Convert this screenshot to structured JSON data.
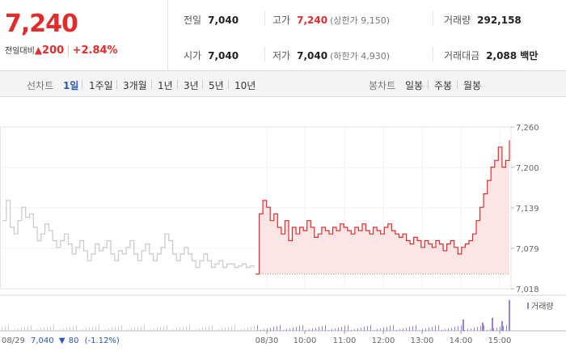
{
  "summary": {
    "price": "7,240",
    "change_label": "전일대비",
    "change_arrow": "▲",
    "change_value": "200",
    "change_rate": "+2.84%",
    "prev_close": {
      "label": "전일",
      "value": "7,040"
    },
    "open": {
      "label": "시가",
      "value": "7,040"
    },
    "high": {
      "label": "고가",
      "value": "7,240",
      "sub": "(상한가 9,150)"
    },
    "low": {
      "label": "저가",
      "value": "7,040",
      "sub": "(하한가 4,930)"
    },
    "volume": {
      "label": "거래량",
      "value": "292,158"
    },
    "turnover": {
      "label": "거래대금",
      "value": "2,088 백만"
    }
  },
  "line_tabs": {
    "label": "선차트",
    "items": [
      "1일",
      "1주일",
      "3개월",
      "1년",
      "3년",
      "5년",
      "10년"
    ],
    "active": 0
  },
  "candle_tabs": {
    "label": "봉차트",
    "items": [
      "일봉",
      "주봉",
      "월봉"
    ]
  },
  "chart_data": {
    "type": "line",
    "y_ticks": [
      "7,260",
      "7,200",
      "7,139",
      "7,079",
      "7,018"
    ],
    "ylim": [
      7018,
      7260
    ],
    "x_ticks": [
      "08/30",
      "10:00",
      "11:00",
      "12:00",
      "13:00",
      "14:00",
      "15:00"
    ],
    "prev_day": {
      "date": "08/29",
      "close": "7,040",
      "arrow": "▼",
      "change": "80",
      "rate": "(-1.12%)"
    },
    "volume_label": "거래량",
    "base_price": 7040,
    "colors": {
      "today": "#e22b2b",
      "prev": "#c8c8c8",
      "fill": "#fde5e5"
    },
    "series": [
      {
        "period": "08/29",
        "values": [
          7120,
          7150,
          7110,
          7100,
          7120,
          7140,
          7125,
          7130,
          7110,
          7090,
          7100,
          7115,
          7105,
          7090,
          7080,
          7090,
          7100,
          7085,
          7070,
          7080,
          7090,
          7075,
          7060,
          7070,
          7085,
          7075,
          7080,
          7090,
          7070,
          7060,
          7075,
          7070,
          7080,
          7090,
          7070,
          7060,
          7075,
          7085,
          7070,
          7060,
          7070,
          7080,
          7100,
          7090,
          7070,
          7060,
          7070,
          7080,
          7070,
          7060,
          7050,
          7060,
          7070,
          7060,
          7050,
          7055,
          7060,
          7050,
          7055,
          7055,
          7050,
          7052,
          7055,
          7050,
          7052,
          7050
        ]
      },
      {
        "period": "08/30",
        "values": [
          7040,
          7130,
          7150,
          7140,
          7120,
          7130,
          7110,
          7100,
          7120,
          7090,
          7110,
          7100,
          7110,
          7105,
          7120,
          7110,
          7095,
          7100,
          7110,
          7105,
          7100,
          7110,
          7105,
          7115,
          7110,
          7105,
          7100,
          7110,
          7105,
          7115,
          7105,
          7100,
          7110,
          7105,
          7100,
          7110,
          7115,
          7105,
          7100,
          7095,
          7100,
          7090,
          7085,
          7095,
          7090,
          7080,
          7090,
          7085,
          7080,
          7090,
          7085,
          7075,
          7085,
          7090,
          7080,
          7070,
          7080,
          7085,
          7090,
          7100,
          7120,
          7140,
          7160,
          7180,
          7200,
          7210,
          7230,
          7200,
          7210,
          7240
        ]
      }
    ]
  }
}
